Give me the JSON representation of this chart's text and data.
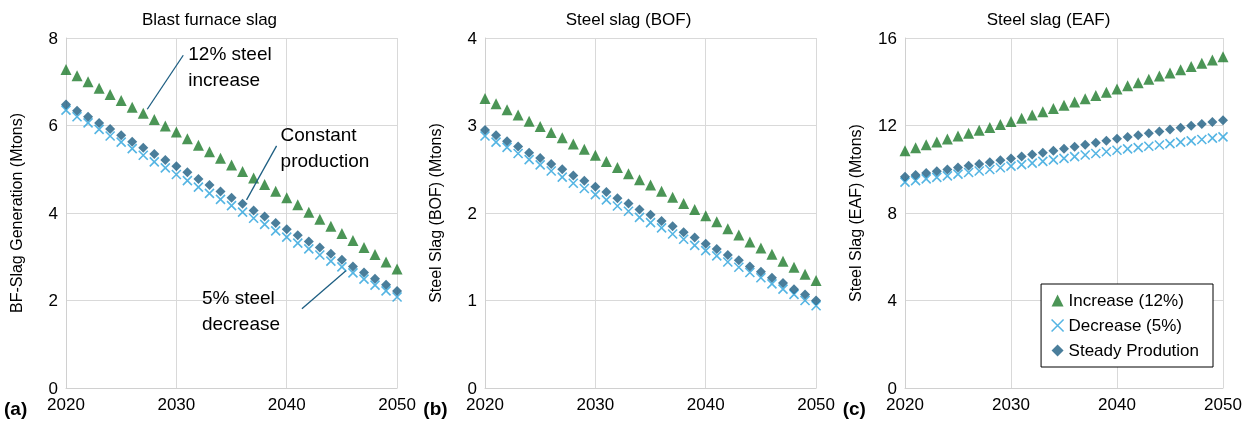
{
  "chart_data": [
    {
      "type": "scatter",
      "title": "Blast furnace slag",
      "ylabel": "BF-Slag Generation (Mtons)",
      "x": [
        2020,
        2021,
        2022,
        2023,
        2024,
        2025,
        2026,
        2027,
        2028,
        2029,
        2030,
        2031,
        2032,
        2033,
        2034,
        2035,
        2036,
        2037,
        2038,
        2039,
        2040,
        2041,
        2042,
        2043,
        2044,
        2045,
        2046,
        2047,
        2048,
        2049,
        2050
      ],
      "xlim": [
        2020,
        2050
      ],
      "xticks": [
        2020,
        2030,
        2040,
        2050
      ],
      "ylim": [
        0,
        8
      ],
      "yticks": [
        0,
        2,
        4,
        6,
        8
      ],
      "grid": true,
      "legend": false,
      "annotations": [
        "(a)",
        {
          "text": "12% steel increase",
          "x": 2027,
          "y": 6.28
        },
        {
          "text": "Constant production",
          "x": 2036,
          "y": 4.21
        },
        {
          "text": "5% steel decrease",
          "x": 2045,
          "y": 2.77
        }
      ],
      "series": [
        {
          "color": "#1e7a2c",
          "marker": "triangle",
          "values": [
            7.28,
            7.14,
            7.0,
            6.85,
            6.71,
            6.57,
            6.42,
            6.28,
            6.14,
            5.99,
            5.85,
            5.7,
            5.55,
            5.4,
            5.25,
            5.1,
            4.95,
            4.8,
            4.65,
            4.5,
            4.35,
            4.19,
            4.02,
            3.86,
            3.7,
            3.53,
            3.37,
            3.21,
            3.05,
            2.88,
            2.72
          ]
        },
        {
          "color": "#2aa3dc",
          "marker": "cross",
          "values": [
            6.35,
            6.2,
            6.06,
            5.91,
            5.76,
            5.62,
            5.47,
            5.32,
            5.17,
            5.03,
            4.88,
            4.74,
            4.59,
            4.45,
            4.31,
            4.17,
            4.02,
            3.88,
            3.74,
            3.59,
            3.45,
            3.31,
            3.18,
            3.04,
            2.9,
            2.77,
            2.63,
            2.49,
            2.35,
            2.22,
            2.08
          ]
        },
        {
          "color": "#1d5e82",
          "marker": "diamond",
          "values": [
            6.48,
            6.34,
            6.2,
            6.06,
            5.92,
            5.78,
            5.63,
            5.49,
            5.35,
            5.21,
            5.07,
            4.93,
            4.78,
            4.64,
            4.49,
            4.35,
            4.21,
            4.06,
            3.92,
            3.77,
            3.63,
            3.49,
            3.35,
            3.21,
            3.07,
            2.93,
            2.78,
            2.64,
            2.5,
            2.36,
            2.22
          ]
        }
      ]
    },
    {
      "type": "scatter",
      "title": "Steel slag (BOF)",
      "ylabel": "Steel Slag (BOF) (Mtons)",
      "x": [
        2020,
        2021,
        2022,
        2023,
        2024,
        2025,
        2026,
        2027,
        2028,
        2029,
        2030,
        2031,
        2032,
        2033,
        2034,
        2035,
        2036,
        2037,
        2038,
        2039,
        2040,
        2041,
        2042,
        2043,
        2044,
        2045,
        2046,
        2047,
        2048,
        2049,
        2050
      ],
      "xlim": [
        2020,
        2050
      ],
      "xticks": [
        2020,
        2030,
        2040,
        2050
      ],
      "ylim": [
        0,
        4
      ],
      "yticks": [
        0,
        1,
        2,
        3,
        4
      ],
      "grid": true,
      "legend": false,
      "annotations": [
        "(b)"
      ],
      "series": [
        {
          "color": "#1e7a2c",
          "marker": "triangle",
          "values": [
            3.31,
            3.25,
            3.18,
            3.12,
            3.05,
            2.99,
            2.92,
            2.86,
            2.79,
            2.73,
            2.66,
            2.59,
            2.52,
            2.45,
            2.38,
            2.32,
            2.25,
            2.18,
            2.11,
            2.04,
            1.97,
            1.9,
            1.82,
            1.75,
            1.67,
            1.6,
            1.53,
            1.45,
            1.38,
            1.3,
            1.23
          ]
        },
        {
          "color": "#2aa3dc",
          "marker": "cross",
          "values": [
            2.88,
            2.81,
            2.75,
            2.68,
            2.61,
            2.55,
            2.48,
            2.41,
            2.34,
            2.28,
            2.21,
            2.15,
            2.08,
            2.02,
            1.95,
            1.89,
            1.83,
            1.76,
            1.7,
            1.63,
            1.57,
            1.51,
            1.44,
            1.38,
            1.32,
            1.26,
            1.19,
            1.13,
            1.07,
            1.0,
            0.94
          ]
        },
        {
          "color": "#1d5e82",
          "marker": "diamond",
          "values": [
            2.95,
            2.89,
            2.82,
            2.76,
            2.69,
            2.63,
            2.56,
            2.5,
            2.43,
            2.37,
            2.3,
            2.24,
            2.17,
            2.11,
            2.04,
            1.98,
            1.91,
            1.85,
            1.78,
            1.72,
            1.65,
            1.59,
            1.52,
            1.46,
            1.39,
            1.33,
            1.26,
            1.2,
            1.13,
            1.07,
            1.0
          ]
        }
      ]
    },
    {
      "type": "scatter",
      "title": "Steel slag (EAF)",
      "ylabel": "Steel Slag (EAF) (Mtons)",
      "x": [
        2020,
        2021,
        2022,
        2023,
        2024,
        2025,
        2026,
        2027,
        2028,
        2029,
        2030,
        2031,
        2032,
        2033,
        2034,
        2035,
        2036,
        2037,
        2038,
        2039,
        2040,
        2041,
        2042,
        2043,
        2044,
        2045,
        2046,
        2047,
        2048,
        2049,
        2050
      ],
      "xlim": [
        2020,
        2050
      ],
      "xticks": [
        2020,
        2030,
        2040,
        2050
      ],
      "ylim": [
        0,
        16
      ],
      "yticks": [
        0,
        4,
        8,
        12,
        16
      ],
      "grid": true,
      "legend": "bottom right",
      "annotations": [
        "(c)"
      ],
      "series": [
        {
          "name": "Increase (12%)",
          "color": "#1e7a2c",
          "marker": "triangle",
          "values": [
            10.85,
            10.98,
            11.12,
            11.25,
            11.38,
            11.52,
            11.65,
            11.78,
            11.91,
            12.05,
            12.18,
            12.33,
            12.48,
            12.63,
            12.78,
            12.93,
            13.07,
            13.22,
            13.37,
            13.52,
            13.67,
            13.82,
            13.96,
            14.11,
            14.26,
            14.4,
            14.55,
            14.7,
            14.85,
            14.99,
            15.14
          ]
        },
        {
          "name": "Decrease (5%)",
          "color": "#2aa3dc",
          "marker": "cross",
          "values": [
            9.41,
            9.48,
            9.56,
            9.63,
            9.7,
            9.78,
            9.85,
            9.92,
            9.99,
            10.07,
            10.14,
            10.21,
            10.28,
            10.36,
            10.43,
            10.5,
            10.58,
            10.65,
            10.72,
            10.8,
            10.87,
            10.93,
            10.99,
            11.05,
            11.11,
            11.17,
            11.24,
            11.3,
            11.36,
            11.42,
            11.48
          ]
        },
        {
          "name": "Steady Prodution",
          "color": "#1d5e82",
          "marker": "diamond",
          "values": [
            9.66,
            9.74,
            9.83,
            9.91,
            9.99,
            10.08,
            10.16,
            10.24,
            10.32,
            10.41,
            10.49,
            10.58,
            10.67,
            10.76,
            10.85,
            10.94,
            11.03,
            11.12,
            11.21,
            11.3,
            11.39,
            11.48,
            11.56,
            11.65,
            11.73,
            11.82,
            11.9,
            11.99,
            12.07,
            12.16,
            12.24
          ]
        }
      ]
    }
  ]
}
